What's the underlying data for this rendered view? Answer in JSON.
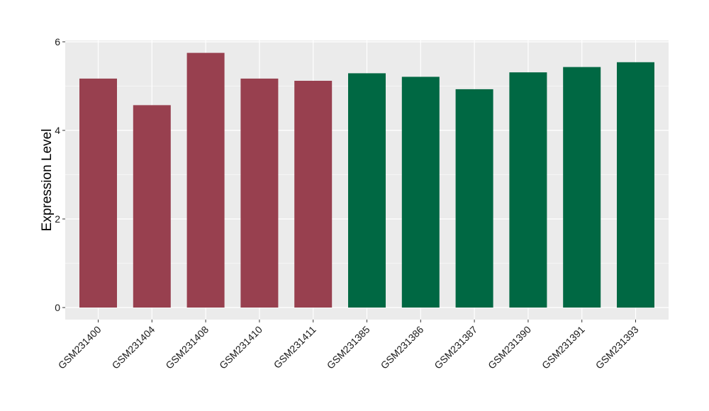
{
  "chart_data": {
    "type": "bar",
    "title": "",
    "xlabel": "",
    "ylabel": "Expression Level",
    "ylim": [
      0,
      6.25
    ],
    "yticks": [
      0,
      2,
      4,
      6
    ],
    "ytick_labels": [
      "0",
      "2",
      "4",
      "6"
    ],
    "grid": true,
    "legend": "none",
    "categories": [
      "GSM231400",
      "GSM231404",
      "GSM231408",
      "GSM231410",
      "GSM231411",
      "GSM231385",
      "GSM231386",
      "GSM231387",
      "GSM231390",
      "GSM231391",
      "GSM231393"
    ],
    "values": [
      5.17,
      4.57,
      5.75,
      5.17,
      5.12,
      5.29,
      5.21,
      4.93,
      5.31,
      5.43,
      5.54
    ],
    "bar_colors": [
      "#98404f",
      "#98404f",
      "#98404f",
      "#98404f",
      "#98404f",
      "#006843",
      "#006843",
      "#006843",
      "#006843",
      "#006843",
      "#006843"
    ],
    "panel_background": "#ebebeb",
    "gridline_color": "#ffffff"
  }
}
